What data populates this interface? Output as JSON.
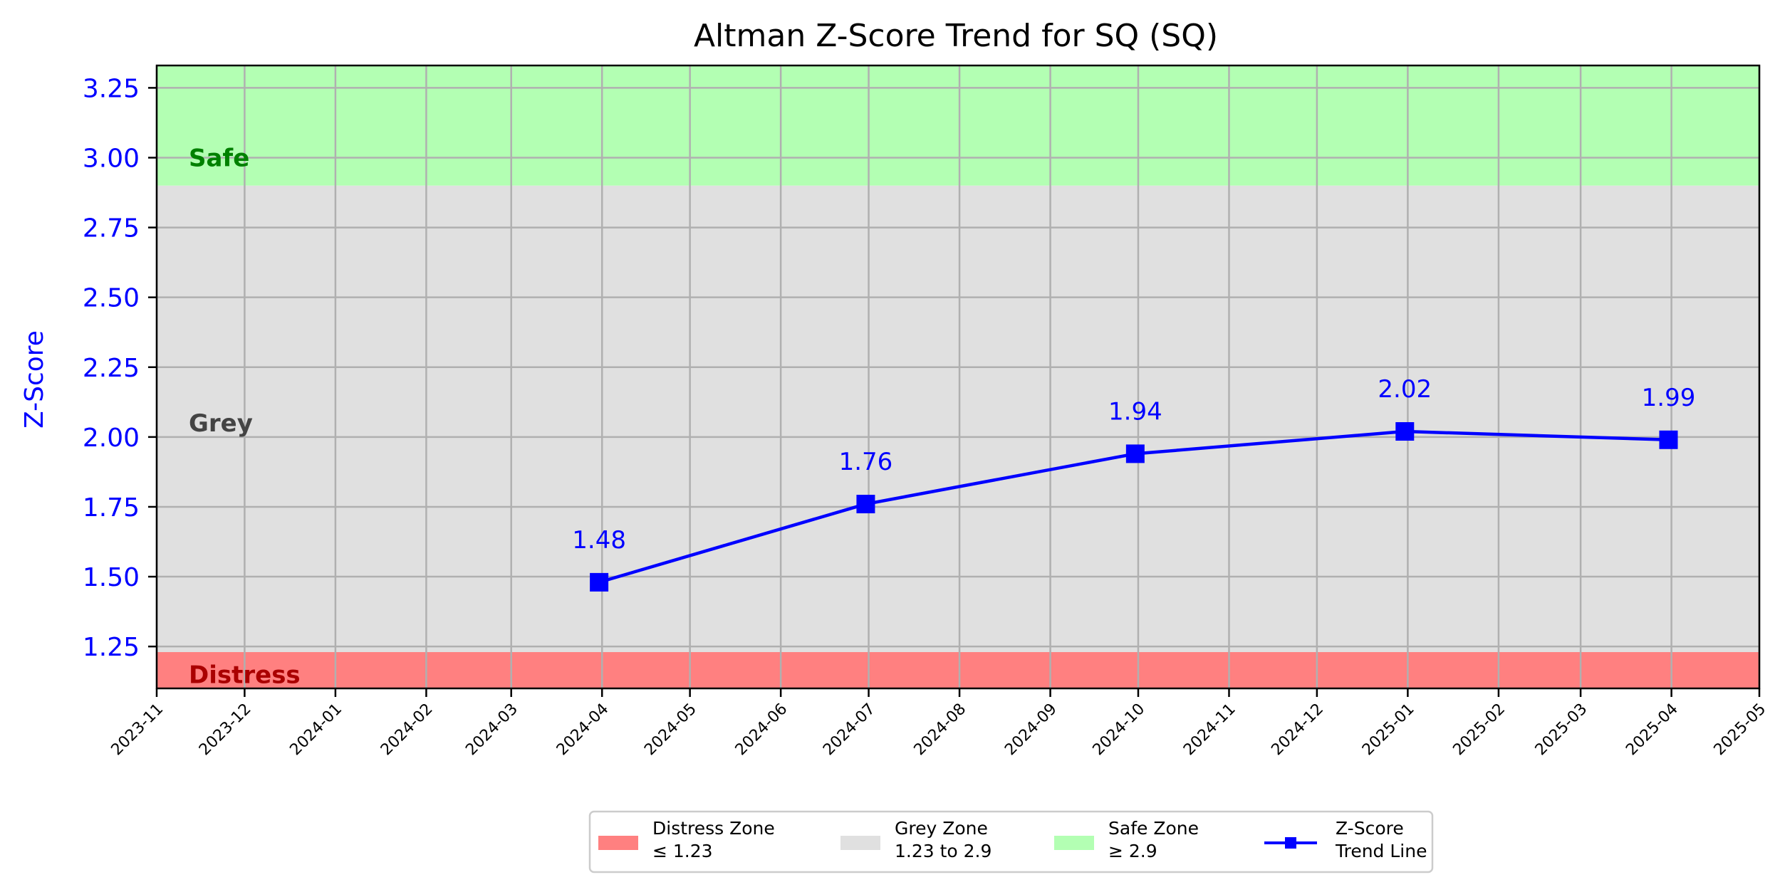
{
  "chart_data": {
    "type": "line",
    "title": "Altman Z-Score Trend for SQ (SQ)",
    "xlabel": "",
    "ylabel": "Z-Score",
    "x_axis": "date",
    "xlim": [
      "2023-11-01",
      "2025-05-01"
    ],
    "ylim": [
      1.1,
      3.33
    ],
    "grid": true,
    "x_ticks": [
      {
        "date": "2023-11-01",
        "label": "2023-11"
      },
      {
        "date": "2023-12-01",
        "label": "2023-12"
      },
      {
        "date": "2024-01-01",
        "label": "2024-01"
      },
      {
        "date": "2024-02-01",
        "label": "2024-02"
      },
      {
        "date": "2024-03-01",
        "label": "2024-03"
      },
      {
        "date": "2024-04-01",
        "label": "2024-04"
      },
      {
        "date": "2024-05-01",
        "label": "2024-05"
      },
      {
        "date": "2024-06-01",
        "label": "2024-06"
      },
      {
        "date": "2024-07-01",
        "label": "2024-07"
      },
      {
        "date": "2024-08-01",
        "label": "2024-08"
      },
      {
        "date": "2024-09-01",
        "label": "2024-09"
      },
      {
        "date": "2024-10-01",
        "label": "2024-10"
      },
      {
        "date": "2024-11-01",
        "label": "2024-11"
      },
      {
        "date": "2024-12-01",
        "label": "2024-12"
      },
      {
        "date": "2025-01-01",
        "label": "2025-01"
      },
      {
        "date": "2025-02-01",
        "label": "2025-02"
      },
      {
        "date": "2025-03-01",
        "label": "2025-03"
      },
      {
        "date": "2025-04-01",
        "label": "2025-04"
      },
      {
        "date": "2025-05-01",
        "label": "2025-05"
      }
    ],
    "y_ticks": [
      {
        "value": 1.25,
        "label": "1.25"
      },
      {
        "value": 1.5,
        "label": "1.50"
      },
      {
        "value": 1.75,
        "label": "1.75"
      },
      {
        "value": 2.0,
        "label": "2.00"
      },
      {
        "value": 2.25,
        "label": "2.25"
      },
      {
        "value": 2.5,
        "label": "2.50"
      },
      {
        "value": 2.75,
        "label": "2.75"
      },
      {
        "value": 3.0,
        "label": "3.00"
      },
      {
        "value": 3.25,
        "label": "3.25"
      }
    ],
    "series": [
      {
        "name": "Z-Score Trend Line",
        "color": "#0000ff",
        "marker": "square",
        "x": [
          "2024-03-31",
          "2024-06-30",
          "2024-09-30",
          "2024-12-31",
          "2025-03-31"
        ],
        "y": [
          1.48,
          1.76,
          1.94,
          2.02,
          1.99
        ],
        "labels": [
          "1.48",
          "1.76",
          "1.94",
          "2.02",
          "1.99"
        ]
      }
    ],
    "zones": [
      {
        "name": "Distress",
        "legend_lines": [
          "Distress Zone",
          "≤ 1.23"
        ],
        "from": 1.1,
        "to": 1.23,
        "color": "#ff8080",
        "label_color": "#aa0000"
      },
      {
        "name": "Grey",
        "legend_lines": [
          "Grey Zone",
          "1.23 to 2.9"
        ],
        "from": 1.23,
        "to": 2.9,
        "color": "#e0e0e0",
        "label_color": "#444444"
      },
      {
        "name": "Safe",
        "legend_lines": [
          "Safe Zone",
          "≥ 2.9"
        ],
        "from": 2.9,
        "to": 3.33,
        "color": "#b3ffb3",
        "label_color": "#008000"
      }
    ],
    "trend_legend_lines": [
      "Z-Score",
      "Trend Line"
    ],
    "legend_position": "bottom-center",
    "axis_color": "#0000ff"
  }
}
